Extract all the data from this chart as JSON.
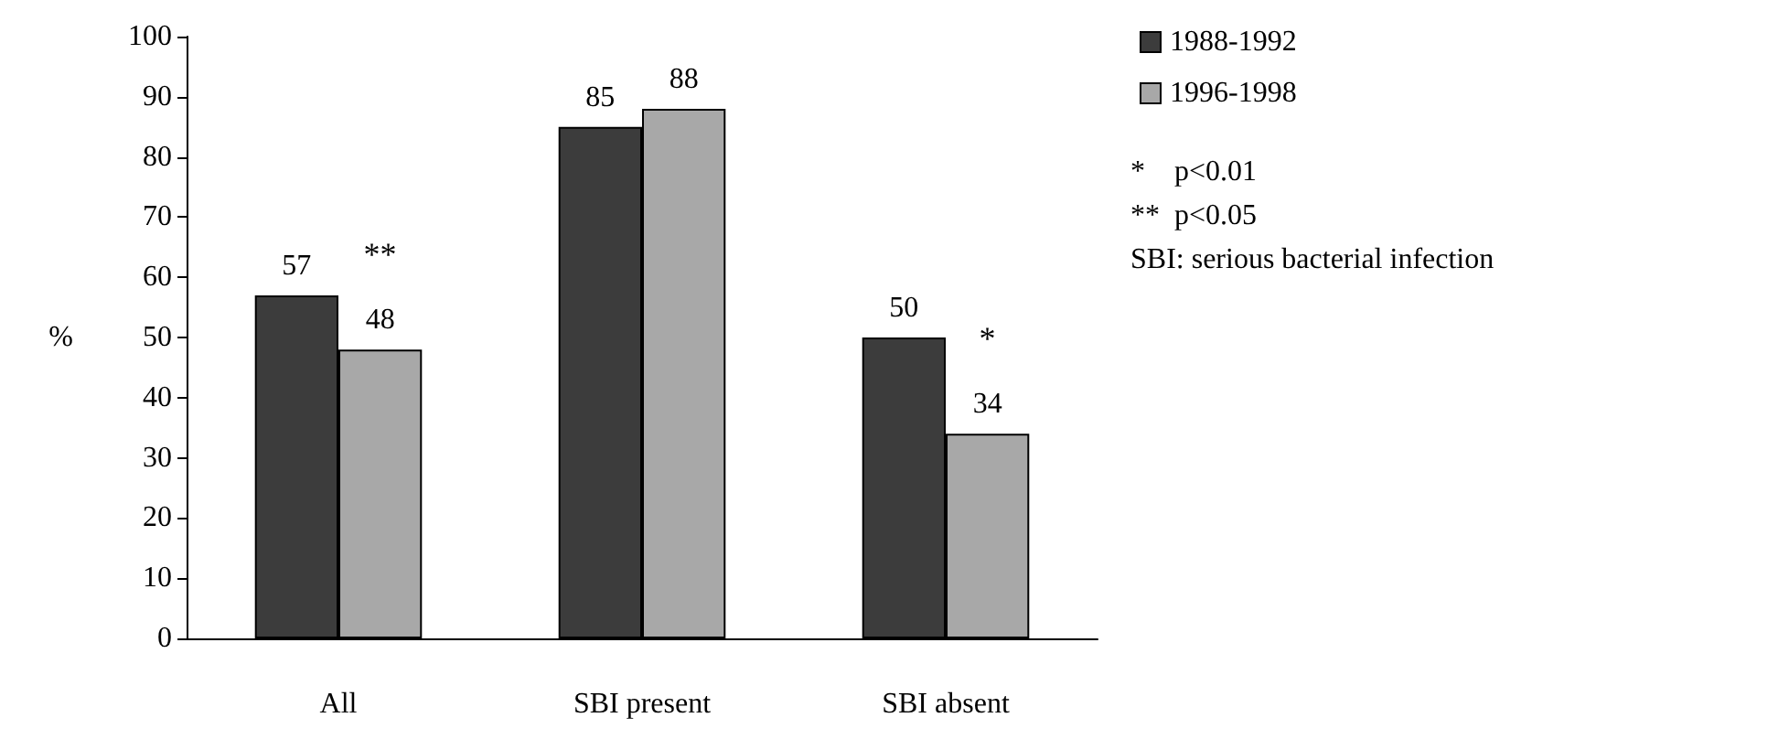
{
  "chart_data": {
    "type": "bar",
    "ylabel": "%",
    "categories": [
      "All",
      "SBI present",
      "SBI absent"
    ],
    "series": [
      {
        "name": "1988-1992",
        "color": "#3c3c3c",
        "values": [
          57,
          85,
          50
        ]
      },
      {
        "name": "1996-1998",
        "color": "#a8a8a8",
        "values": [
          48,
          88,
          34
        ]
      }
    ],
    "ylim": [
      0,
      100
    ],
    "yticks": [
      0,
      10,
      20,
      30,
      40,
      50,
      60,
      70,
      80,
      90,
      100
    ],
    "grid": false,
    "legend": "top right",
    "data_labels": true,
    "annotations": [
      {
        "text": "**",
        "x": "All",
        "y": 48
      },
      {
        "text": "*",
        "x": "SBI absent",
        "y": 34
      },
      "*    p<0.01",
      "**  p<0.05",
      "SBI: serious bacterial infection"
    ]
  }
}
